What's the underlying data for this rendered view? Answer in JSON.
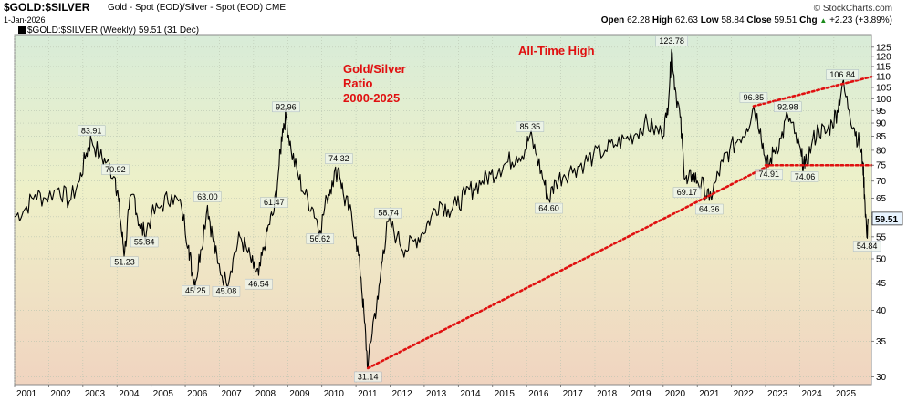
{
  "header": {
    "symbol": "$GOLD:$SILVER",
    "subtitle": "Gold - Spot (EOD)/Silver - Spot (EOD) CME",
    "date": "1-Jan-2026",
    "credit": "© StockCharts.com",
    "open_label": "Open",
    "open": "62.28",
    "high_label": "High",
    "high": "62.63",
    "low_label": "Low",
    "low": "58.84",
    "close_label": "Close",
    "close": "59.51",
    "chg_label": "Chg",
    "chg": "+2.23 (+3.89%)",
    "chg_arrow": "▲"
  },
  "legend": {
    "text": "$GOLD:$SILVER (Weekly) 59.51 (31 Dec)"
  },
  "chart_data": {
    "type": "line",
    "title": "Gold/Silver Ratio 2000-2025",
    "title_lines": [
      "Gold/Silver",
      "Ratio",
      "2000-2025"
    ],
    "annotation_text": "All-Time High",
    "yscale": "log",
    "ylim": [
      29,
      132
    ],
    "xlim": [
      2001.0,
      2026.1
    ],
    "y_ticks": [
      30,
      35,
      40,
      45,
      50,
      55,
      60,
      65,
      70,
      75,
      80,
      85,
      90,
      95,
      100,
      105,
      110,
      115,
      120,
      125
    ],
    "x_ticks": [
      2001,
      2002,
      2003,
      2004,
      2005,
      2006,
      2007,
      2008,
      2009,
      2010,
      2011,
      2012,
      2013,
      2014,
      2015,
      2016,
      2017,
      2018,
      2019,
      2020,
      2021,
      2022,
      2023,
      2024,
      2025
    ],
    "last_value": "59.51",
    "series_points": [
      [
        2001.0,
        60
      ],
      [
        2001.3,
        62
      ],
      [
        2001.6,
        66
      ],
      [
        2001.9,
        65
      ],
      [
        2002.3,
        68
      ],
      [
        2002.6,
        64
      ],
      [
        2002.9,
        70
      ],
      [
        2003.1,
        79
      ],
      [
        2003.25,
        83.91
      ],
      [
        2003.5,
        78
      ],
      [
        2003.7,
        76
      ],
      [
        2003.95,
        70.92
      ],
      [
        2004.05,
        64
      ],
      [
        2004.15,
        55
      ],
      [
        2004.22,
        51.23
      ],
      [
        2004.35,
        62
      ],
      [
        2004.5,
        66
      ],
      [
        2004.65,
        58
      ],
      [
        2004.8,
        55.84
      ],
      [
        2005.0,
        60
      ],
      [
        2005.3,
        63
      ],
      [
        2005.6,
        66
      ],
      [
        2005.9,
        62
      ],
      [
        2006.1,
        53
      ],
      [
        2006.2,
        47
      ],
      [
        2006.3,
        45.25
      ],
      [
        2006.45,
        52
      ],
      [
        2006.65,
        63.0
      ],
      [
        2006.8,
        55
      ],
      [
        2006.95,
        49
      ],
      [
        2007.2,
        45.08
      ],
      [
        2007.4,
        50
      ],
      [
        2007.6,
        55
      ],
      [
        2007.8,
        52
      ],
      [
        2008.0,
        48
      ],
      [
        2008.15,
        46.54
      ],
      [
        2008.3,
        52
      ],
      [
        2008.45,
        58
      ],
      [
        2008.6,
        61.47
      ],
      [
        2008.75,
        75
      ],
      [
        2008.85,
        88
      ],
      [
        2008.95,
        92.96
      ],
      [
        2009.1,
        80
      ],
      [
        2009.3,
        72
      ],
      [
        2009.5,
        66
      ],
      [
        2009.75,
        62
      ],
      [
        2009.95,
        56.62
      ],
      [
        2010.15,
        65
      ],
      [
        2010.3,
        70
      ],
      [
        2010.5,
        74.32
      ],
      [
        2010.65,
        65
      ],
      [
        2010.8,
        62
      ],
      [
        2011.0,
        55
      ],
      [
        2011.15,
        46
      ],
      [
        2011.25,
        38
      ],
      [
        2011.35,
        31.14
      ],
      [
        2011.5,
        38
      ],
      [
        2011.65,
        42
      ],
      [
        2011.8,
        52
      ],
      [
        2011.95,
        58.74
      ],
      [
        2012.2,
        55
      ],
      [
        2012.45,
        52
      ],
      [
        2012.7,
        54
      ],
      [
        2012.95,
        56
      ],
      [
        2013.2,
        60
      ],
      [
        2013.45,
        64
      ],
      [
        2013.7,
        62
      ],
      [
        2013.95,
        63
      ],
      [
        2014.2,
        66
      ],
      [
        2014.45,
        68
      ],
      [
        2014.7,
        70
      ],
      [
        2014.95,
        72
      ],
      [
        2015.2,
        74
      ],
      [
        2015.45,
        76
      ],
      [
        2015.7,
        78
      ],
      [
        2015.95,
        80
      ],
      [
        2016.1,
        85.35
      ],
      [
        2016.3,
        78
      ],
      [
        2016.5,
        70
      ],
      [
        2016.65,
        64.6
      ],
      [
        2016.85,
        70
      ],
      [
        2017.1,
        72
      ],
      [
        2017.4,
        74
      ],
      [
        2017.7,
        76
      ],
      [
        2017.95,
        78
      ],
      [
        2018.3,
        80
      ],
      [
        2018.6,
        82
      ],
      [
        2018.9,
        84
      ],
      [
        2019.2,
        86
      ],
      [
        2019.45,
        90
      ],
      [
        2019.7,
        88
      ],
      [
        2019.95,
        86
      ],
      [
        2020.1,
        92
      ],
      [
        2020.2,
        110
      ],
      [
        2020.25,
        123.78
      ],
      [
        2020.35,
        105
      ],
      [
        2020.5,
        92
      ],
      [
        2020.6,
        75
      ],
      [
        2020.7,
        69.17
      ],
      [
        2020.85,
        72
      ],
      [
        2021.0,
        70
      ],
      [
        2021.2,
        68
      ],
      [
        2021.35,
        64.36
      ],
      [
        2021.55,
        70
      ],
      [
        2021.75,
        76
      ],
      [
        2021.95,
        80
      ],
      [
        2022.2,
        84
      ],
      [
        2022.45,
        88
      ],
      [
        2022.65,
        96.85
      ],
      [
        2022.85,
        88
      ],
      [
        2023.0,
        76
      ],
      [
        2023.1,
        74.91
      ],
      [
        2023.25,
        80
      ],
      [
        2023.45,
        84
      ],
      [
        2023.65,
        92.98
      ],
      [
        2023.85,
        86
      ],
      [
        2024.05,
        78
      ],
      [
        2024.15,
        74.06
      ],
      [
        2024.35,
        82
      ],
      [
        2024.55,
        88
      ],
      [
        2024.75,
        86
      ],
      [
        2024.95,
        90
      ],
      [
        2025.1,
        95
      ],
      [
        2025.25,
        106.84
      ],
      [
        2025.45,
        95
      ],
      [
        2025.6,
        88
      ],
      [
        2025.75,
        82
      ],
      [
        2025.85,
        76
      ],
      [
        2025.9,
        66
      ],
      [
        2025.97,
        54.84
      ],
      [
        2026.0,
        59.51
      ]
    ],
    "labels": [
      {
        "x": 2003.25,
        "y": 83.91,
        "text": "83.91",
        "pos": "above"
      },
      {
        "x": 2003.95,
        "y": 70.92,
        "text": "70.92",
        "pos": "above"
      },
      {
        "x": 2004.22,
        "y": 51.23,
        "text": "51.23",
        "pos": "below"
      },
      {
        "x": 2004.8,
        "y": 55.84,
        "text": "55.84",
        "pos": "below"
      },
      {
        "x": 2006.3,
        "y": 45.25,
        "text": "45.25",
        "pos": "below"
      },
      {
        "x": 2006.65,
        "y": 63.0,
        "text": "63.00",
        "pos": "above"
      },
      {
        "x": 2007.2,
        "y": 45.08,
        "text": "45.08",
        "pos": "below"
      },
      {
        "x": 2008.15,
        "y": 46.54,
        "text": "46.54",
        "pos": "below"
      },
      {
        "x": 2008.6,
        "y": 61.47,
        "text": "61.47",
        "pos": "above"
      },
      {
        "x": 2008.95,
        "y": 92.96,
        "text": "92.96",
        "pos": "above"
      },
      {
        "x": 2009.95,
        "y": 56.62,
        "text": "56.62",
        "pos": "below"
      },
      {
        "x": 2010.5,
        "y": 74.32,
        "text": "74.32",
        "pos": "above"
      },
      {
        "x": 2011.35,
        "y": 31.14,
        "text": "31.14",
        "pos": "below"
      },
      {
        "x": 2011.95,
        "y": 58.74,
        "text": "58.74",
        "pos": "above"
      },
      {
        "x": 2016.1,
        "y": 85.35,
        "text": "85.35",
        "pos": "above"
      },
      {
        "x": 2016.65,
        "y": 64.6,
        "text": "64.60",
        "pos": "below"
      },
      {
        "x": 2020.25,
        "y": 123.78,
        "text": "123.78",
        "pos": "above"
      },
      {
        "x": 2020.7,
        "y": 69.17,
        "text": "69.17",
        "pos": "below"
      },
      {
        "x": 2021.35,
        "y": 64.36,
        "text": "64.36",
        "pos": "below"
      },
      {
        "x": 2022.65,
        "y": 96.85,
        "text": "96.85",
        "pos": "above"
      },
      {
        "x": 2023.1,
        "y": 74.91,
        "text": "74.91",
        "pos": "below"
      },
      {
        "x": 2023.65,
        "y": 92.98,
        "text": "92.98",
        "pos": "above"
      },
      {
        "x": 2024.15,
        "y": 74.06,
        "text": "74.06",
        "pos": "below"
      },
      {
        "x": 2025.25,
        "y": 106.84,
        "text": "106.84",
        "pos": "above"
      },
      {
        "x": 2025.97,
        "y": 54.84,
        "text": "54.84",
        "pos": "below"
      }
    ],
    "trendlines": [
      {
        "name": "long-term-support",
        "x1": 2011.35,
        "y1": 31.14,
        "x2": 2023.1,
        "y2": 74.91
      },
      {
        "name": "ath-resistance",
        "x1": 2022.65,
        "y1": 96.85,
        "x2": 2026.1,
        "y2": 110
      },
      {
        "name": "horizontal-support",
        "x1": 2023.0,
        "y1": 75,
        "x2": 2026.1,
        "y2": 75
      }
    ]
  },
  "colors": {
    "trendline": "#e01010",
    "series": "#000000",
    "bg_top": "#d8ecd8",
    "bg_mid": "#eef0c8",
    "bg_bottom": "#f0d4c0",
    "last_value_box": "#e8f4ff"
  }
}
